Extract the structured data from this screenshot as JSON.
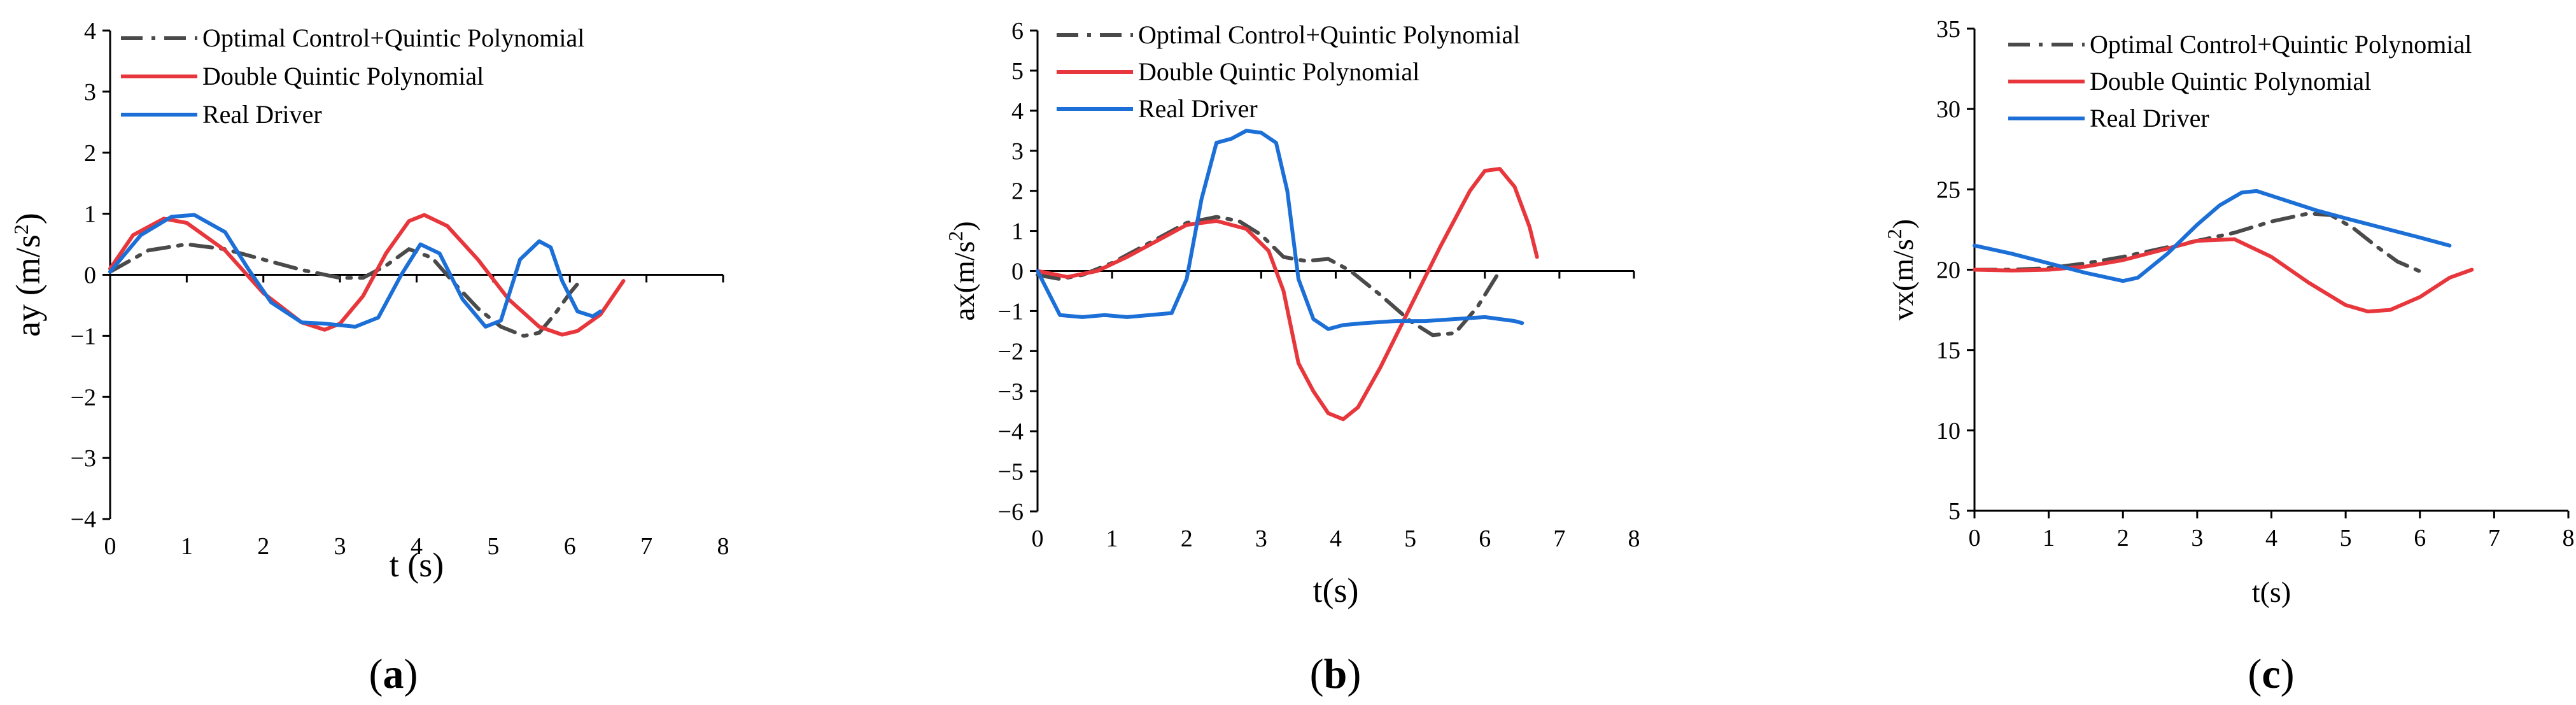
{
  "legend_names": [
    "Optimal Control+Quintic Polynomial",
    "Double Quintic Polynomial",
    "Real Driver"
  ],
  "colors": {
    "optimal": "#4a4a4a",
    "double": "#e8373c",
    "driver": "#1b6fd6"
  },
  "chart_data": [
    {
      "type": "line",
      "panel": "a",
      "caption_letter": "a",
      "xlabel": "t (s)",
      "ylabel_text": "ay (m/s",
      "ylabel_sup": "2",
      "ylabel_end": ")",
      "xlim": [
        0,
        8
      ],
      "ylim": [
        -4,
        4
      ],
      "xticks": [
        "0",
        "1",
        "2",
        "3",
        "4",
        "5",
        "6",
        "7",
        "8"
      ],
      "yticks": [
        "−4",
        "−3",
        "−2",
        "−1",
        "0",
        "1",
        "2",
        "3",
        "4"
      ],
      "series": [
        {
          "name": "Optimal Control+Quintic Polynomial",
          "style": "dashdot",
          "x": [
            0,
            0.5,
            1.0,
            1.5,
            2.0,
            2.5,
            3.0,
            3.3,
            3.6,
            3.9,
            4.2,
            4.5,
            4.8,
            5.1,
            5.4,
            5.6,
            5.8,
            6.0,
            6.1
          ],
          "y": [
            0.05,
            0.4,
            0.5,
            0.42,
            0.25,
            0.08,
            -0.05,
            -0.05,
            0.15,
            0.42,
            0.28,
            -0.15,
            -0.55,
            -0.85,
            -1.0,
            -0.95,
            -0.65,
            -0.3,
            -0.15
          ]
        },
        {
          "name": "Double Quintic Polynomial",
          "style": "solid",
          "x": [
            0,
            0.3,
            0.7,
            1.0,
            1.5,
            2.0,
            2.5,
            2.8,
            3.0,
            3.3,
            3.6,
            3.9,
            4.1,
            4.4,
            4.8,
            5.2,
            5.6,
            5.9,
            6.1,
            6.4,
            6.7
          ],
          "y": [
            0.1,
            0.65,
            0.92,
            0.85,
            0.4,
            -0.3,
            -0.78,
            -0.9,
            -0.8,
            -0.35,
            0.35,
            0.88,
            0.98,
            0.8,
            0.25,
            -0.4,
            -0.85,
            -0.98,
            -0.92,
            -0.65,
            -0.1
          ]
        },
        {
          "name": "Real Driver",
          "style": "solid",
          "x": [
            0,
            0.4,
            0.8,
            1.1,
            1.5,
            1.8,
            2.1,
            2.5,
            2.8,
            3.2,
            3.5,
            3.8,
            4.05,
            4.3,
            4.6,
            4.9,
            5.1,
            5.35,
            5.6,
            5.75,
            5.9,
            6.1,
            6.3,
            6.4
          ],
          "y": [
            0.05,
            0.65,
            0.95,
            0.98,
            0.7,
            0.1,
            -0.45,
            -0.78,
            -0.8,
            -0.85,
            -0.7,
            0.0,
            0.5,
            0.35,
            -0.4,
            -0.85,
            -0.75,
            0.25,
            0.55,
            0.45,
            -0.1,
            -0.6,
            -0.68,
            -0.6
          ]
        }
      ]
    },
    {
      "type": "line",
      "panel": "b",
      "caption_letter": "b",
      "xlabel": "t(s)",
      "ylabel_text": "ax(m/s",
      "ylabel_sup": "2",
      "ylabel_end": ")",
      "xlim": [
        0,
        8
      ],
      "ylim": [
        -6,
        6
      ],
      "xticks": [
        "0",
        "1",
        "2",
        "3",
        "4",
        "5",
        "6",
        "7",
        "8"
      ],
      "yticks": [
        "−6",
        "−5",
        "−4",
        "−3",
        "−2",
        "−1",
        "0",
        "1",
        "2",
        "3",
        "4",
        "5",
        "6"
      ],
      "series": [
        {
          "name": "Optimal Control+Quintic Polynomial",
          "style": "dashdot",
          "x": [
            0,
            0.3,
            0.6,
            1.0,
            1.5,
            2.0,
            2.4,
            2.7,
            3.0,
            3.3,
            3.6,
            3.9,
            4.2,
            4.6,
            5.0,
            5.3,
            5.6,
            5.9,
            6.2
          ],
          "y": [
            -0.1,
            -0.2,
            -0.1,
            0.2,
            0.7,
            1.2,
            1.35,
            1.25,
            0.9,
            0.35,
            0.25,
            0.3,
            0.0,
            -0.6,
            -1.25,
            -1.6,
            -1.55,
            -0.9,
            0.0
          ]
        },
        {
          "name": "Double Quintic Polynomial",
          "style": "solid",
          "x": [
            0,
            0.4,
            0.8,
            1.2,
            1.6,
            2.0,
            2.4,
            2.8,
            3.1,
            3.3,
            3.5,
            3.7,
            3.9,
            4.1,
            4.3,
            4.6,
            5.0,
            5.4,
            5.8,
            6.0,
            6.2,
            6.4,
            6.6,
            6.7
          ],
          "y": [
            0.0,
            -0.15,
            0.0,
            0.35,
            0.75,
            1.15,
            1.25,
            1.05,
            0.5,
            -0.5,
            -2.3,
            -3.0,
            -3.55,
            -3.7,
            -3.4,
            -2.4,
            -0.9,
            0.6,
            2.0,
            2.5,
            2.55,
            2.1,
            1.1,
            0.35
          ]
        },
        {
          "name": "Real Driver",
          "style": "solid",
          "x": [
            0,
            0.3,
            0.6,
            0.9,
            1.2,
            1.5,
            1.8,
            2.0,
            2.2,
            2.4,
            2.6,
            2.8,
            3.0,
            3.2,
            3.35,
            3.5,
            3.7,
            3.9,
            4.1,
            4.4,
            4.8,
            5.2,
            5.6,
            6.0,
            6.4,
            6.5
          ],
          "y": [
            0.0,
            -1.1,
            -1.15,
            -1.1,
            -1.15,
            -1.1,
            -1.05,
            -0.2,
            1.8,
            3.2,
            3.3,
            3.5,
            3.45,
            3.2,
            2.0,
            -0.2,
            -1.2,
            -1.45,
            -1.35,
            -1.3,
            -1.25,
            -1.25,
            -1.2,
            -1.15,
            -1.25,
            -1.3
          ]
        }
      ]
    },
    {
      "type": "line",
      "panel": "c",
      "caption_letter": "c",
      "xlabel": "t(s)",
      "ylabel_text": "vx(m/s",
      "ylabel_sup": "2",
      "ylabel_end": ")",
      "xlim": [
        0,
        8
      ],
      "ylim": [
        5,
        35
      ],
      "xticks": [
        "0",
        "1",
        "2",
        "3",
        "4",
        "5",
        "6",
        "7",
        "8"
      ],
      "yticks": [
        "5",
        "10",
        "15",
        "20",
        "25",
        "30",
        "35"
      ],
      "series": [
        {
          "name": "Optimal Control+Quintic Polynomial",
          "style": "dashdot",
          "x": [
            0,
            0.5,
            1.0,
            1.5,
            2.0,
            2.5,
            3.0,
            3.5,
            4.0,
            4.5,
            4.8,
            5.1,
            5.4,
            5.7,
            6.0
          ],
          "y": [
            20.0,
            20.0,
            20.1,
            20.4,
            20.8,
            21.3,
            21.8,
            22.3,
            23.0,
            23.5,
            23.4,
            22.6,
            21.5,
            20.5,
            19.9
          ]
        },
        {
          "name": "Double Quintic Polynomial",
          "style": "solid",
          "x": [
            0,
            0.5,
            1.0,
            1.5,
            2.0,
            2.5,
            3.0,
            3.5,
            4.0,
            4.5,
            5.0,
            5.3,
            5.6,
            6.0,
            6.4,
            6.7
          ],
          "y": [
            20.0,
            19.95,
            20.0,
            20.2,
            20.6,
            21.2,
            21.8,
            21.9,
            20.8,
            19.2,
            17.8,
            17.4,
            17.5,
            18.3,
            19.5,
            20.0
          ]
        },
        {
          "name": "Real Driver",
          "style": "solid",
          "x": [
            0,
            0.5,
            1.0,
            1.5,
            2.0,
            2.2,
            2.6,
            3.0,
            3.3,
            3.6,
            3.8,
            4.2,
            4.6,
            5.0,
            5.5,
            6.0,
            6.4
          ],
          "y": [
            21.5,
            21.0,
            20.4,
            19.8,
            19.3,
            19.5,
            21.0,
            22.8,
            24.0,
            24.8,
            24.9,
            24.3,
            23.7,
            23.2,
            22.6,
            22.0,
            21.5
          ]
        }
      ]
    }
  ]
}
